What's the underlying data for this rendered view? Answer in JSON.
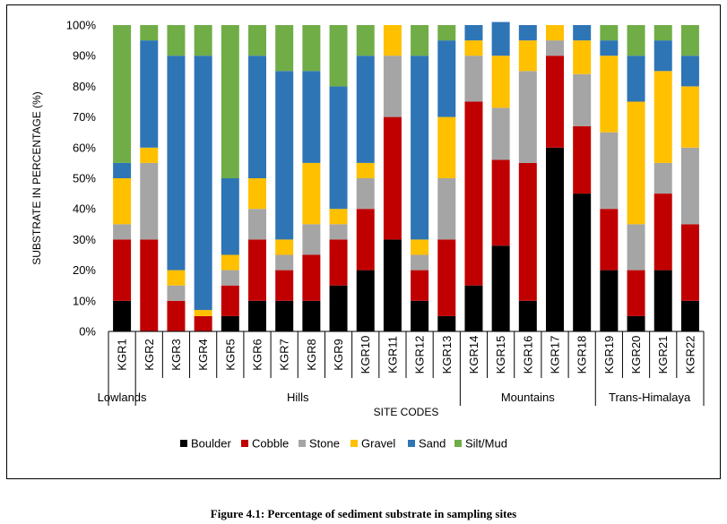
{
  "chart_data": {
    "type": "bar",
    "stacked": true,
    "ylabel": "SUBSTRATE IN PERCENTAGE (%)",
    "xlabel": "SITE CODES",
    "ylim": [
      0,
      100
    ],
    "yticks": [
      "0%",
      "10%",
      "20%",
      "30%",
      "40%",
      "50%",
      "60%",
      "70%",
      "80%",
      "90%",
      "100%"
    ],
    "legend_position": "bottom",
    "grid": false,
    "categories": [
      "KGR1",
      "KGR2",
      "KGR3",
      "KGR4",
      "KGR5",
      "KGR6",
      "KGR7",
      "KGR8",
      "KGR9",
      "KGR10",
      "KGR11",
      "KGR12",
      "KGR13",
      "KGR14",
      "KGR15",
      "KGR16",
      "KGR17",
      "KGR18",
      "KGR19",
      "KGR20",
      "KGR21",
      "KGR22"
    ],
    "groups": [
      {
        "label": "Lowlands",
        "start": 0,
        "end": 0
      },
      {
        "label": "Hills",
        "start": 1,
        "end": 12
      },
      {
        "label": "Mountains",
        "start": 13,
        "end": 17
      },
      {
        "label": "Trans-Himalaya",
        "start": 18,
        "end": 21
      }
    ],
    "series": [
      {
        "name": "Boulder",
        "color": "#000000",
        "values": [
          10,
          0,
          0,
          0,
          5,
          10,
          10,
          10,
          15,
          20,
          30,
          10,
          5,
          15,
          28,
          10,
          60,
          45,
          20,
          5,
          20,
          10
        ]
      },
      {
        "name": "Cobble",
        "color": "#C00000",
        "values": [
          20,
          30,
          10,
          5,
          10,
          20,
          10,
          15,
          15,
          20,
          40,
          10,
          25,
          60,
          28,
          45,
          30,
          22,
          20,
          15,
          25,
          25
        ]
      },
      {
        "name": "Stone",
        "color": "#A5A5A5",
        "values": [
          5,
          25,
          5,
          0,
          5,
          10,
          5,
          10,
          5,
          10,
          20,
          5,
          20,
          15,
          17,
          30,
          5,
          17,
          25,
          15,
          10,
          25
        ]
      },
      {
        "name": "Gravel",
        "color": "#FFC000",
        "values": [
          15,
          5,
          5,
          2,
          5,
          10,
          5,
          20,
          5,
          5,
          10,
          5,
          20,
          5,
          17,
          10,
          5,
          11,
          25,
          40,
          30,
          20
        ]
      },
      {
        "name": "Sand",
        "color": "#2E75B6",
        "values": [
          5,
          35,
          70,
          83,
          25,
          40,
          55,
          30,
          40,
          35,
          0,
          60,
          25,
          5,
          11,
          5,
          0,
          5,
          5,
          15,
          10,
          10
        ]
      },
      {
        "name": "Silt/Mud",
        "color": "#70AD47",
        "values": [
          45,
          5,
          10,
          10,
          50,
          10,
          15,
          15,
          20,
          10,
          0,
          10,
          5,
          0,
          0,
          0,
          0,
          0,
          5,
          10,
          5,
          10
        ]
      }
    ]
  },
  "caption": "Figure 4.1: Percentage of sediment substrate in sampling sites"
}
